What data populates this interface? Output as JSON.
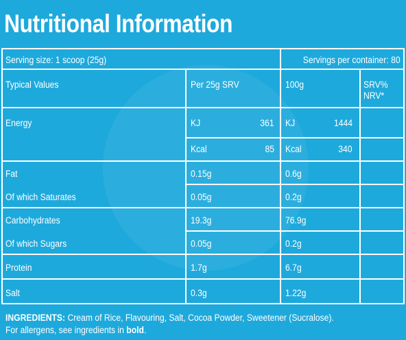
{
  "title": "Nutritional Information",
  "serving": {
    "size": "Serving size: 1 scoop (25g)",
    "per_container": "Servings per container: 80"
  },
  "headers": {
    "typical": "Typical Values",
    "per_serving": "Per 25g SRV",
    "per_100": "100g",
    "nrv_line1": "SRV%",
    "nrv_line2": "NRV*"
  },
  "energy": {
    "label": "Energy",
    "kj_unit": "KJ",
    "kj_srv": "361",
    "kj_100": "1444",
    "kcal_unit": "Kcal",
    "kcal_srv": "85",
    "kcal_100": "340"
  },
  "rows": [
    {
      "label": "Fat",
      "srv": "0.15g",
      "per100": "0.6g"
    },
    {
      "label": "Of which Saturates",
      "srv": "0.05g",
      "per100": "0.2g"
    },
    {
      "label": "Carbohydrates",
      "srv": "19.3g",
      "per100": "76.9g"
    },
    {
      "label": "Of which Sugars",
      "srv": "0.05g",
      "per100": "0.2g"
    },
    {
      "label": "Protein",
      "srv": "1.7g",
      "per100": "6.7g"
    },
    {
      "label": "Salt",
      "srv": "0.3g",
      "per100": "1.22g"
    }
  ],
  "ingredients": {
    "heading": "INGREDIENTS:",
    "list": "Cream of Rice, Flavouring, Salt, Cocoa Powder, Sweetener (Sucralose).",
    "allergen_prefix": "For allergens, see ingredients in",
    "allergen_bold": "bold",
    "allergen_suffix": "."
  },
  "colors": {
    "background": "#1ea9dc",
    "text": "#ffffff"
  }
}
